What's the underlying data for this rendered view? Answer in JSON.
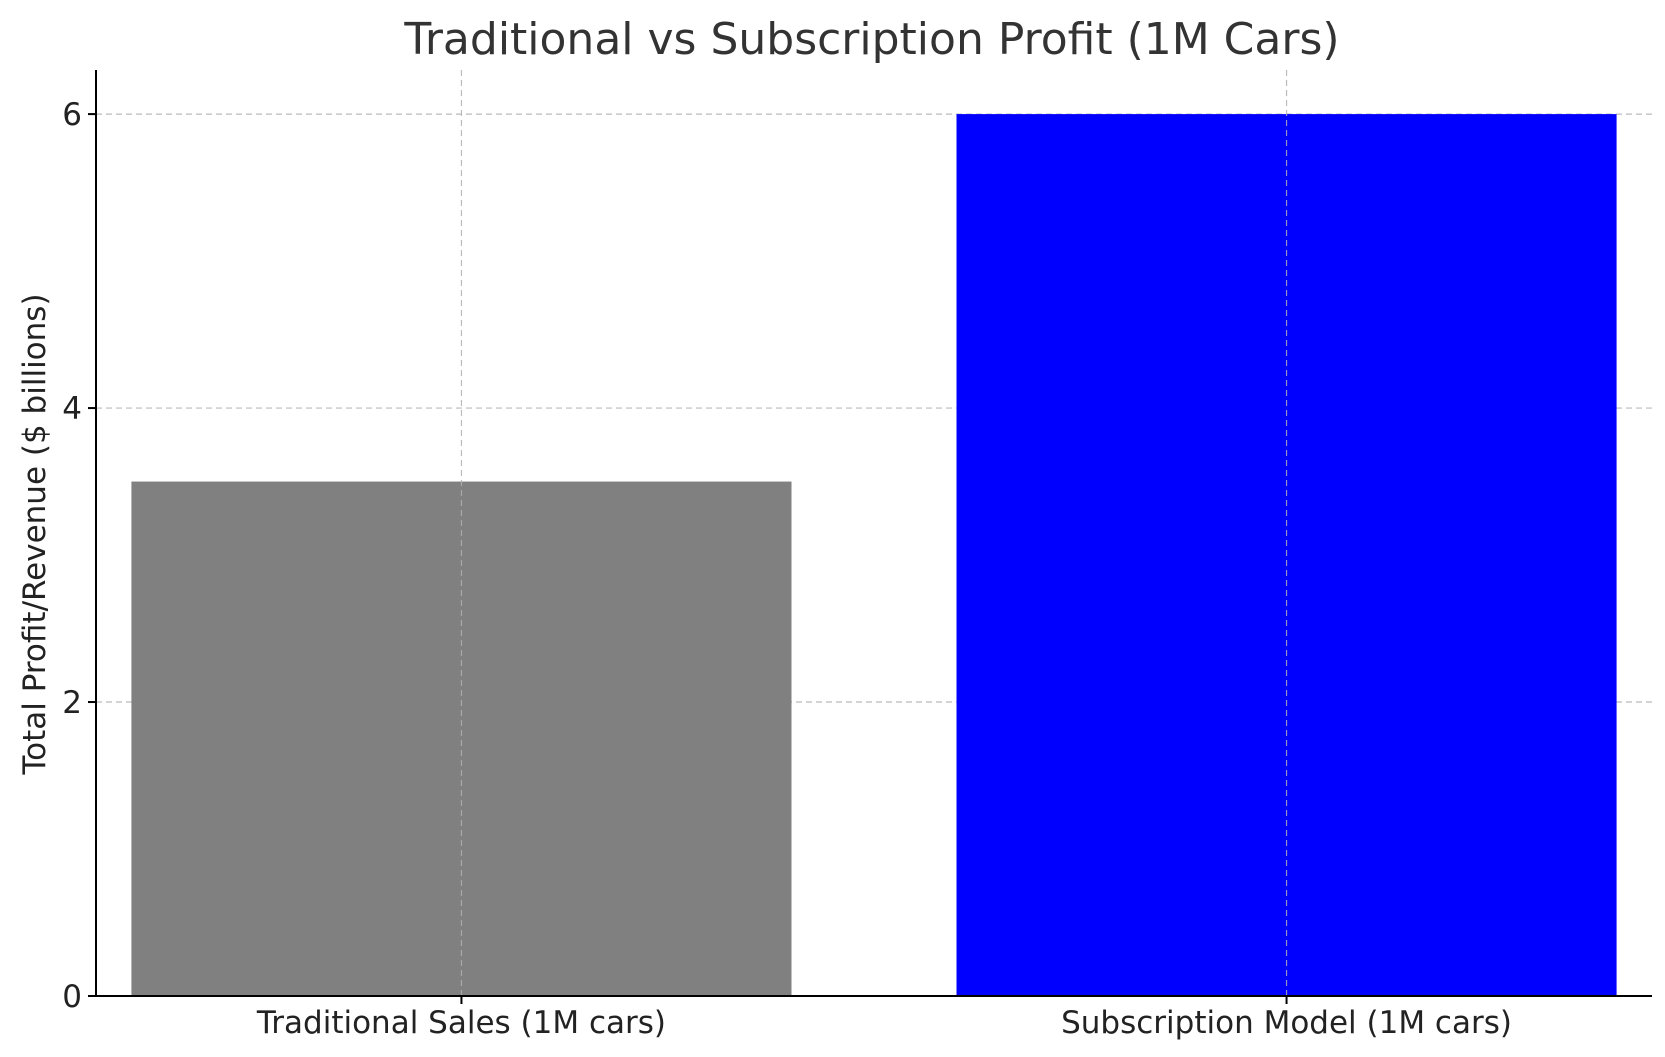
{
  "chart_data": {
    "type": "bar",
    "title": "Traditional vs Subscription Profit (1M Cars)",
    "xlabel": "",
    "ylabel": "Total Profit/Revenue ($ billions)",
    "categories": [
      "Traditional Sales (1M cars)",
      "Subscription Model (1M cars)"
    ],
    "values": [
      3.5,
      6.0
    ],
    "colors": [
      "#808080",
      "#0000ff"
    ],
    "ylim": [
      0,
      6.3
    ],
    "yticks": [
      0,
      2,
      4,
      6
    ],
    "grid": true,
    "legend": "none"
  }
}
